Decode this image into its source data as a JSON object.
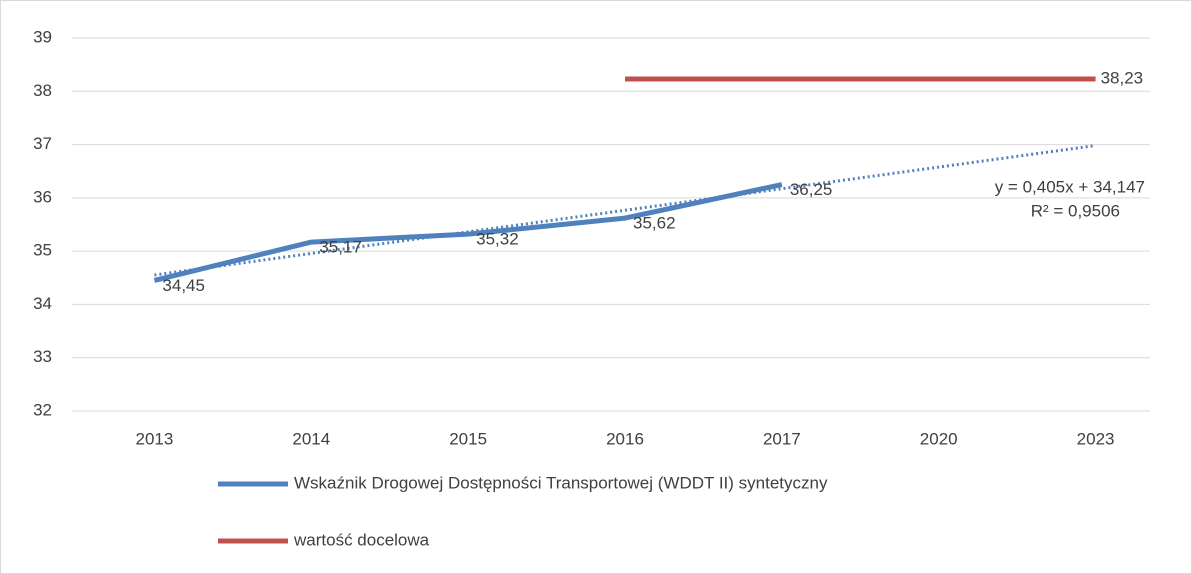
{
  "chart_data": {
    "type": "line",
    "categories": [
      "2013",
      "2014",
      "2015",
      "2016",
      "2017",
      "2020",
      "2023"
    ],
    "series": [
      {
        "name": "Wskaźnik Drogowej Dostępności Transportowej (WDDT II) syntetyczny",
        "color": "#4f81bd",
        "values": [
          34.45,
          35.17,
          35.32,
          35.62,
          36.25,
          null,
          null
        ],
        "value_labels": [
          "34,45",
          "35,17",
          "35,32",
          "35,62",
          "36,25",
          null,
          null
        ]
      },
      {
        "name": "wartość docelowa",
        "color": "#c0504d",
        "values": [
          null,
          null,
          null,
          38.23,
          38.23,
          38.23,
          38.23
        ],
        "value_labels": [
          null,
          null,
          null,
          null,
          null,
          null,
          "38,23"
        ]
      }
    ],
    "trendline": {
      "slope": 0.405,
      "intercept": 34.147,
      "label": "y = 0,405x + 34,147",
      "r2_label": "R² = 0,9506"
    },
    "ylim": [
      32,
      39
    ],
    "yticks": [
      32,
      33,
      34,
      35,
      36,
      37,
      38,
      39
    ],
    "grid": true,
    "legend": "bottom"
  }
}
